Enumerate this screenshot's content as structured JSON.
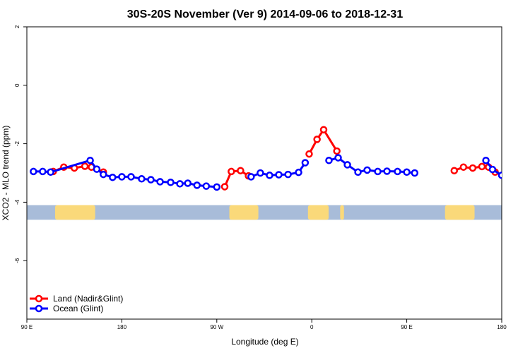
{
  "chart_data": {
    "type": "line",
    "title": "30S-20S November (Ver 9)   2014-09-06 to 2018-12-31",
    "xlabel": "Longitude (deg E)",
    "ylabel": "XCO2 - MLO trend (ppm)",
    "xlim": [
      90,
      450
    ],
    "ylim": [
      -8,
      2
    ],
    "x_ticks": [
      {
        "value": 90,
        "label": "90 E"
      },
      {
        "value": 162,
        "label": "180"
      },
      {
        "value": 234,
        "label": "90 W"
      },
      {
        "value": 306,
        "label": "0"
      },
      {
        "value": 378,
        "label": "90 E"
      },
      {
        "value": 450,
        "label": "180"
      }
    ],
    "y_ticks": [
      {
        "value": 2,
        "label": "2"
      },
      {
        "value": 0,
        "label": "0"
      },
      {
        "value": -2,
        "label": "-2"
      },
      {
        "value": -4,
        "label": "-4"
      },
      {
        "value": -6,
        "label": "-6"
      }
    ],
    "legend_placement": "bottom-left",
    "grid": false,
    "land_band": {
      "y_top": -4.1,
      "y_bottom": -4.6,
      "ocean_color": "#a8bcd9",
      "land_color": "#fad97a"
    },
    "land_regions": [
      {
        "x": [
          111.4,
          141.8
        ]
      },
      {
        "x": [
          243.5,
          265.5
        ]
      },
      {
        "x": [
          303.1,
          318.8
        ]
      },
      {
        "x": [
          327.5,
          330.4
        ]
      },
      {
        "x": [
          407.0,
          429.4
        ]
      }
    ],
    "series": [
      {
        "name": "Land (Nadir&Glint)",
        "color": "#ff0000",
        "segments": [
          [
            {
              "x": 110.0,
              "y": -2.95
            },
            {
              "x": 118.0,
              "y": -2.8
            },
            {
              "x": 126.0,
              "y": -2.83
            },
            {
              "x": 134.0,
              "y": -2.77
            },
            {
              "x": 139.0,
              "y": -2.8
            },
            {
              "x": 148.0,
              "y": -2.97
            }
          ],
          [
            {
              "x": 240.0,
              "y": -3.47
            },
            {
              "x": 245.0,
              "y": -2.95
            },
            {
              "x": 252.0,
              "y": -2.92
            },
            {
              "x": 258.0,
              "y": -3.1
            }
          ],
          [
            {
              "x": 304.0,
              "y": -2.35
            },
            {
              "x": 310.0,
              "y": -1.85
            },
            {
              "x": 315.0,
              "y": -1.52
            },
            {
              "x": 325.0,
              "y": -2.25
            }
          ],
          [
            {
              "x": 414.0,
              "y": -2.92
            },
            {
              "x": 421.0,
              "y": -2.8
            },
            {
              "x": 428.0,
              "y": -2.83
            },
            {
              "x": 435.0,
              "y": -2.78
            },
            {
              "x": 440.0,
              "y": -2.8
            },
            {
              "x": 445.0,
              "y": -2.97
            }
          ]
        ]
      },
      {
        "name": "Ocean (Glint)",
        "color": "#0000ff",
        "segments": [
          [
            {
              "x": 95.0,
              "y": -2.95
            },
            {
              "x": 102.0,
              "y": -2.95
            },
            {
              "x": 108.0,
              "y": -2.97
            },
            {
              "x": 138.0,
              "y": -2.57
            },
            {
              "x": 143.0,
              "y": -2.87
            },
            {
              "x": 148.0,
              "y": -3.05
            },
            {
              "x": 155.0,
              "y": -3.15
            },
            {
              "x": 162.0,
              "y": -3.13
            },
            {
              "x": 169.0,
              "y": -3.13
            },
            {
              "x": 177.0,
              "y": -3.2
            },
            {
              "x": 184.0,
              "y": -3.23
            },
            {
              "x": 191.0,
              "y": -3.3
            },
            {
              "x": 199.0,
              "y": -3.32
            },
            {
              "x": 206.0,
              "y": -3.37
            },
            {
              "x": 212.0,
              "y": -3.35
            },
            {
              "x": 219.0,
              "y": -3.42
            },
            {
              "x": 226.0,
              "y": -3.45
            },
            {
              "x": 234.0,
              "y": -3.48
            }
          ],
          [
            {
              "x": 260.0,
              "y": -3.13
            },
            {
              "x": 267.0,
              "y": -3.0
            },
            {
              "x": 274.0,
              "y": -3.08
            },
            {
              "x": 281.0,
              "y": -3.06
            },
            {
              "x": 288.0,
              "y": -3.05
            },
            {
              "x": 296.0,
              "y": -2.98
            },
            {
              "x": 301.0,
              "y": -2.65
            }
          ],
          [
            {
              "x": 319.0,
              "y": -2.57
            },
            {
              "x": 326.0,
              "y": -2.48
            },
            {
              "x": 333.0,
              "y": -2.72
            },
            {
              "x": 341.0,
              "y": -2.97
            },
            {
              "x": 348.0,
              "y": -2.9
            },
            {
              "x": 356.0,
              "y": -2.95
            },
            {
              "x": 363.0,
              "y": -2.94
            },
            {
              "x": 371.0,
              "y": -2.95
            },
            {
              "x": 378.0,
              "y": -2.97
            },
            {
              "x": 384.0,
              "y": -3.0
            }
          ],
          [
            {
              "x": 438.0,
              "y": -2.57
            },
            {
              "x": 443.0,
              "y": -2.88
            },
            {
              "x": 450.0,
              "y": -3.08
            },
            {
              "x": 458.0,
              "y": -3.13
            }
          ]
        ]
      }
    ]
  }
}
